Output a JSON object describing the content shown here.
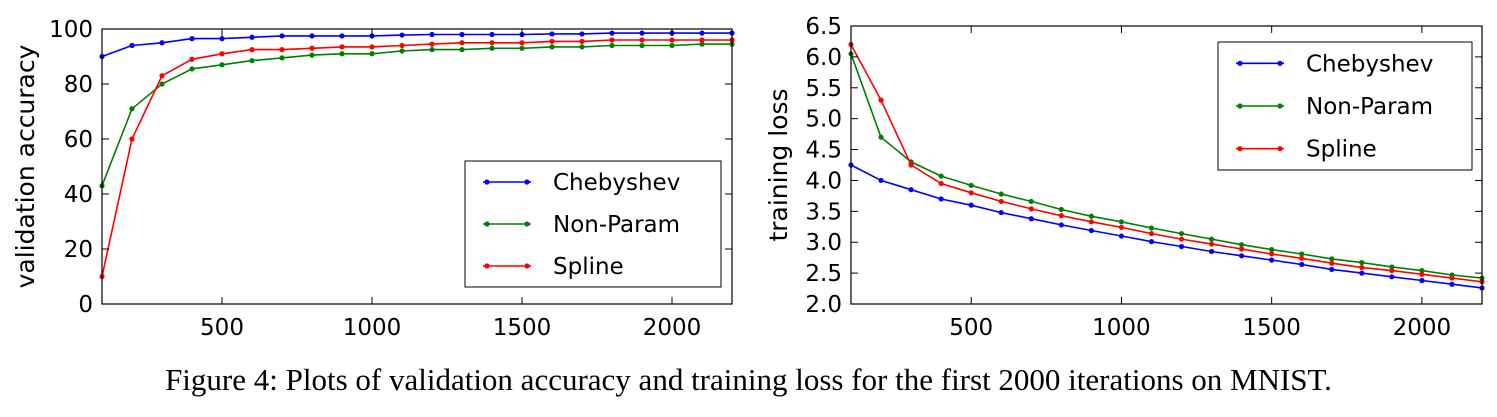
{
  "caption": "Figure 4: Plots of validation accuracy and training loss for the first 2000 iterations on MNIST.",
  "chart_data": [
    {
      "type": "line",
      "title": "",
      "xlabel": "",
      "ylabel": "validation accuracy",
      "xlim": [
        100,
        2200
      ],
      "ylim": [
        0,
        100
      ],
      "xticks": [
        500,
        1000,
        1500,
        2000
      ],
      "yticks": [
        0,
        20,
        40,
        60,
        80,
        100
      ],
      "legend_position": "lower-right",
      "x": [
        100,
        200,
        300,
        400,
        500,
        600,
        700,
        800,
        900,
        1000,
        1100,
        1200,
        1300,
        1400,
        1500,
        1600,
        1700,
        1800,
        1900,
        2000,
        2100,
        2200
      ],
      "series": [
        {
          "name": "Chebyshev",
          "color": "#0000ff",
          "values": [
            90,
            94,
            95,
            96.5,
            96.5,
            97,
            97.5,
            97.5,
            97.5,
            97.5,
            97.8,
            98,
            98,
            98,
            98,
            98.2,
            98.2,
            98.5,
            98.5,
            98.5,
            98.5,
            98.5
          ]
        },
        {
          "name": "Non-Param",
          "color": "#008000",
          "values": [
            43,
            71,
            80,
            85.5,
            87,
            88.5,
            89.5,
            90.5,
            91,
            91,
            92,
            92.5,
            92.5,
            93,
            93,
            93.5,
            93.5,
            94,
            94,
            94,
            94.5,
            94.5
          ]
        },
        {
          "name": "Spline",
          "color": "#ff0000",
          "values": [
            10,
            60,
            83,
            89,
            91,
            92.5,
            92.5,
            93,
            93.5,
            93.5,
            94,
            94.5,
            95,
            95,
            95,
            95.5,
            95.5,
            96,
            96,
            96,
            96,
            96
          ]
        }
      ]
    },
    {
      "type": "line",
      "title": "",
      "xlabel": "",
      "ylabel": "training loss",
      "xlim": [
        100,
        2200
      ],
      "ylim": [
        2.0,
        6.5
      ],
      "xticks": [
        500,
        1000,
        1500,
        2000
      ],
      "yticks": [
        "2.0",
        "2.5",
        "3.0",
        "3.5",
        "4.0",
        "4.5",
        "5.0",
        "5.5",
        "6.0",
        "6.5"
      ],
      "legend_position": "top-right",
      "x": [
        100,
        200,
        300,
        400,
        500,
        600,
        700,
        800,
        900,
        1000,
        1100,
        1200,
        1300,
        1400,
        1500,
        1600,
        1700,
        1800,
        1900,
        2000,
        2100,
        2200
      ],
      "series": [
        {
          "name": "Chebyshev",
          "color": "#0000ff",
          "values": [
            4.25,
            4.0,
            3.85,
            3.7,
            3.6,
            3.48,
            3.38,
            3.28,
            3.19,
            3.1,
            3.01,
            2.93,
            2.85,
            2.78,
            2.71,
            2.64,
            2.56,
            2.5,
            2.44,
            2.38,
            2.32,
            2.26
          ]
        },
        {
          "name": "Non-Param",
          "color": "#008000",
          "values": [
            6.05,
            4.7,
            4.3,
            4.07,
            3.92,
            3.78,
            3.66,
            3.53,
            3.42,
            3.33,
            3.23,
            3.14,
            3.05,
            2.96,
            2.88,
            2.81,
            2.73,
            2.67,
            2.6,
            2.54,
            2.47,
            2.42
          ]
        },
        {
          "name": "Spline",
          "color": "#ff0000",
          "values": [
            6.2,
            5.3,
            4.25,
            3.95,
            3.8,
            3.66,
            3.54,
            3.43,
            3.33,
            3.24,
            3.14,
            3.05,
            2.97,
            2.89,
            2.81,
            2.74,
            2.66,
            2.59,
            2.54,
            2.48,
            2.42,
            2.36
          ]
        }
      ]
    }
  ]
}
